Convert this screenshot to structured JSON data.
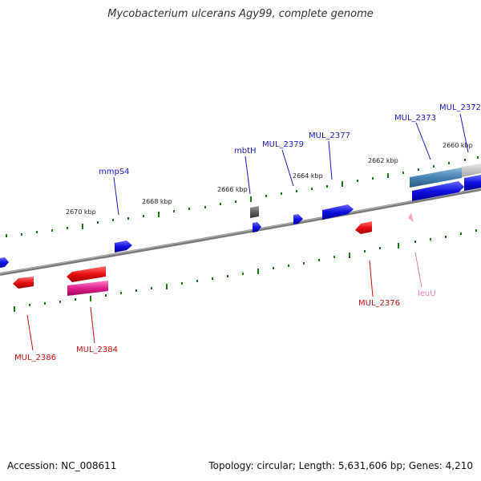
{
  "title": "Mycobacterium ulcerans Agy99, complete genome",
  "footer": {
    "accession": "Accession: NC_008611",
    "summary": "Topology: circular; Length: 5,631,606 bp; Genes: 4,210"
  },
  "colors": {
    "forward_gene": "#1010e0",
    "reverse_gene": "#e81010",
    "trna": "#f080c0",
    "rrna": "#e0208a",
    "pseudo": "#606060",
    "operon": "#4682b4",
    "backbone": "#808080",
    "tick": "#1a7a1a",
    "label_forward": "#1a1ad0",
    "label_reverse": "#cc1010",
    "label_trna": "#f07ab0"
  },
  "scale_labels": [
    {
      "id": "kbp-2660",
      "text": "2660 kbp"
    },
    {
      "id": "kbp-2662",
      "text": "2662 kbp"
    },
    {
      "id": "kbp-2664",
      "text": "2664 kbp"
    },
    {
      "id": "kbp-2666",
      "text": "2666 kbp"
    },
    {
      "id": "kbp-2668",
      "text": "2668 kbp"
    },
    {
      "id": "kbp-2670",
      "text": "2670 kbp"
    }
  ],
  "gene_labels": [
    {
      "id": "mul-2372",
      "text": "MUL_2372",
      "strand": "forward"
    },
    {
      "id": "mul-2373",
      "text": "MUL_2373",
      "strand": "forward"
    },
    {
      "id": "mul-2377",
      "text": "MUL_2377",
      "strand": "forward"
    },
    {
      "id": "mul-2379",
      "text": "MUL_2379",
      "strand": "forward"
    },
    {
      "id": "mbth",
      "text": "mbtH",
      "strand": "forward"
    },
    {
      "id": "mmps4",
      "text": "mmpS4",
      "strand": "forward"
    },
    {
      "id": "mul-2376",
      "text": "MUL_2376",
      "strand": "reverse"
    },
    {
      "id": "leuu",
      "text": "leuU",
      "strand": "trna"
    },
    {
      "id": "mul-2384",
      "text": "MUL_2384",
      "strand": "reverse"
    },
    {
      "id": "mul-2386",
      "text": "MUL_2386",
      "strand": "reverse"
    }
  ]
}
